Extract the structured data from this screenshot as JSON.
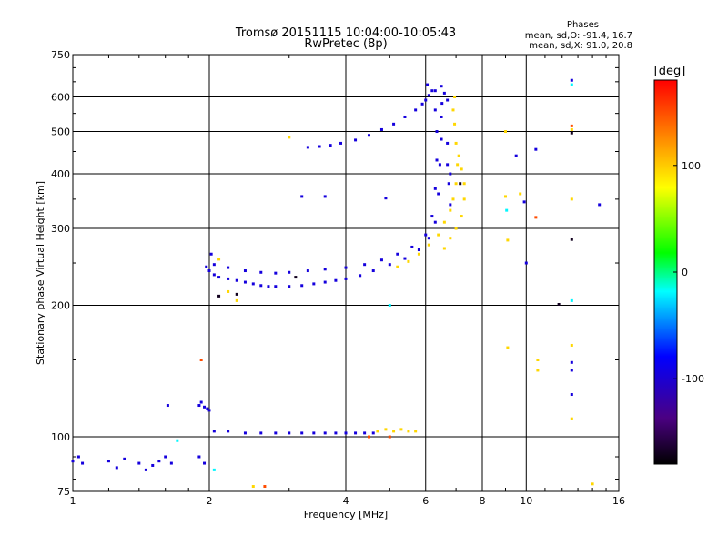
{
  "chart_data": {
    "type": "scatter",
    "title": "Tromsø 20151115 10:04:00-10:05:43",
    "subtitle": "RwPretec (8p)",
    "xlabel": "Frequency [MHz]",
    "ylabel": "Stationary phase Virtual Height [km]",
    "x_scale": "log",
    "y_scale": "log",
    "xlim": [
      1,
      16
    ],
    "ylim": [
      75,
      750
    ],
    "x_ticks": [
      1,
      2,
      4,
      6,
      8,
      10,
      16
    ],
    "y_ticks": [
      75,
      100,
      200,
      300,
      400,
      500,
      600,
      750
    ],
    "grid": true,
    "stats": {
      "header": "Phases",
      "line_o": "mean, sd,O: -91.4, 16.7",
      "line_x": "mean, sd,X:  91.0, 20.8"
    },
    "colorbar": {
      "label": "[deg]",
      "range": [
        -180,
        180
      ],
      "ticks": [
        -100,
        0,
        100
      ],
      "colors": [
        "#000000",
        "#4b0082",
        "#0000ff",
        "#00ffff",
        "#00ff00",
        "#ffff00",
        "#ff8000",
        "#ff0000"
      ]
    },
    "series": [
      {
        "mode": "O",
        "phase": -95,
        "points": [
          [
            1.0,
            88
          ],
          [
            1.03,
            90
          ],
          [
            1.05,
            87
          ],
          [
            1.2,
            88
          ],
          [
            1.25,
            85
          ],
          [
            1.3,
            89
          ],
          [
            1.4,
            87
          ],
          [
            1.45,
            84
          ],
          [
            1.5,
            86
          ],
          [
            1.55,
            88
          ],
          [
            1.6,
            90
          ],
          [
            1.65,
            87
          ],
          [
            1.62,
            118
          ],
          [
            1.9,
            118
          ],
          [
            1.92,
            120
          ],
          [
            1.95,
            117
          ],
          [
            1.98,
            116
          ],
          [
            2.0,
            115
          ],
          [
            1.9,
            90
          ],
          [
            1.95,
            87
          ],
          [
            2.05,
            103
          ],
          [
            2.2,
            103
          ],
          [
            2.4,
            102
          ],
          [
            2.6,
            102
          ],
          [
            2.8,
            102
          ],
          [
            3.0,
            102
          ],
          [
            3.2,
            102
          ],
          [
            3.4,
            102
          ],
          [
            3.6,
            102
          ],
          [
            3.8,
            102
          ],
          [
            4.0,
            102
          ],
          [
            4.2,
            102
          ],
          [
            4.4,
            102
          ],
          [
            4.6,
            102
          ],
          [
            1.97,
            245
          ],
          [
            2.0,
            240
          ],
          [
            2.02,
            262
          ],
          [
            2.05,
            235
          ],
          [
            2.1,
            232
          ],
          [
            2.2,
            230
          ],
          [
            2.3,
            228
          ],
          [
            2.4,
            226
          ],
          [
            2.5,
            224
          ],
          [
            2.6,
            222
          ],
          [
            2.7,
            221
          ],
          [
            2.8,
            221
          ],
          [
            3.0,
            221
          ],
          [
            3.2,
            222
          ],
          [
            3.4,
            224
          ],
          [
            3.6,
            226
          ],
          [
            3.8,
            228
          ],
          [
            4.0,
            230
          ],
          [
            4.3,
            234
          ],
          [
            4.6,
            240
          ],
          [
            5.0,
            248
          ],
          [
            5.4,
            256
          ],
          [
            5.8,
            268
          ],
          [
            6.1,
            285
          ],
          [
            6.3,
            310
          ],
          [
            6.4,
            360
          ],
          [
            6.45,
            420
          ],
          [
            6.5,
            480
          ],
          [
            6.5,
            540
          ],
          [
            6.52,
            580
          ],
          [
            2.05,
            248
          ],
          [
            2.2,
            244
          ],
          [
            2.4,
            240
          ],
          [
            2.6,
            238
          ],
          [
            2.8,
            237
          ],
          [
            3.0,
            238
          ],
          [
            3.3,
            240
          ],
          [
            3.6,
            242
          ],
          [
            4.0,
            244
          ],
          [
            4.4,
            248
          ],
          [
            4.8,
            254
          ],
          [
            5.2,
            262
          ],
          [
            5.6,
            272
          ],
          [
            6.0,
            290
          ],
          [
            6.2,
            320
          ],
          [
            6.3,
            370
          ],
          [
            6.35,
            430
          ],
          [
            6.35,
            500
          ],
          [
            6.3,
            560
          ],
          [
            6.2,
            620
          ],
          [
            6.05,
            640
          ],
          [
            3.3,
            460
          ],
          [
            3.5,
            462
          ],
          [
            3.7,
            465
          ],
          [
            3.9,
            470
          ],
          [
            4.2,
            478
          ],
          [
            4.5,
            490
          ],
          [
            4.8,
            505
          ],
          [
            5.1,
            520
          ],
          [
            5.4,
            540
          ],
          [
            5.7,
            560
          ],
          [
            5.9,
            578
          ],
          [
            6.0,
            590
          ],
          [
            6.1,
            605
          ],
          [
            6.3,
            620
          ],
          [
            6.5,
            635
          ],
          [
            6.6,
            612
          ],
          [
            6.7,
            590
          ],
          [
            6.7,
            420
          ],
          [
            6.75,
            380
          ],
          [
            6.8,
            340
          ],
          [
            6.7,
            470
          ],
          [
            6.8,
            400
          ],
          [
            4.9,
            352
          ],
          [
            3.6,
            355
          ],
          [
            3.2,
            355
          ],
          [
            9.5,
            440
          ],
          [
            9.9,
            345
          ],
          [
            10.5,
            455
          ],
          [
            10.0,
            250
          ],
          [
            12.6,
            655
          ],
          [
            12.6,
            148
          ],
          [
            12.6,
            125
          ],
          [
            12.6,
            142
          ],
          [
            14.5,
            340
          ]
        ]
      },
      {
        "mode": "X",
        "phase": 95,
        "points": [
          [
            4.7,
            103
          ],
          [
            4.9,
            104
          ],
          [
            5.1,
            103
          ],
          [
            5.3,
            104
          ],
          [
            5.5,
            103
          ],
          [
            5.7,
            103
          ],
          [
            5.2,
            245
          ],
          [
            5.5,
            252
          ],
          [
            5.8,
            262
          ],
          [
            6.1,
            275
          ],
          [
            6.4,
            290
          ],
          [
            6.6,
            310
          ],
          [
            6.8,
            330
          ],
          [
            6.9,
            350
          ],
          [
            7.0,
            380
          ],
          [
            7.05,
            420
          ],
          [
            7.0,
            470
          ],
          [
            6.95,
            520
          ],
          [
            6.9,
            560
          ],
          [
            6.95,
            600
          ],
          [
            6.6,
            270
          ],
          [
            6.8,
            285
          ],
          [
            7.0,
            300
          ],
          [
            7.2,
            320
          ],
          [
            7.3,
            350
          ],
          [
            7.3,
            380
          ],
          [
            7.2,
            410
          ],
          [
            7.1,
            440
          ],
          [
            2.1,
            255
          ],
          [
            2.2,
            215
          ],
          [
            2.3,
            205
          ],
          [
            3.0,
            485
          ],
          [
            9.0,
            500
          ],
          [
            9.1,
            282
          ],
          [
            9.1,
            160
          ],
          [
            9.0,
            355
          ],
          [
            9.7,
            360
          ],
          [
            10.6,
            150
          ],
          [
            10.6,
            142
          ],
          [
            12.6,
            505
          ],
          [
            12.6,
            350
          ],
          [
            12.6,
            162
          ],
          [
            12.6,
            110
          ],
          [
            14.0,
            78
          ],
          [
            2.5,
            77
          ]
        ]
      },
      {
        "mode": "other",
        "phase": -170,
        "points": [
          [
            2.1,
            210
          ],
          [
            2.3,
            212
          ],
          [
            3.1,
            232
          ],
          [
            11.8,
            201
          ],
          [
            12.6,
            496
          ],
          [
            12.6,
            283
          ],
          [
            7.15,
            380
          ]
        ]
      },
      {
        "mode": "other",
        "phase": 150,
        "points": [
          [
            1.92,
            150
          ],
          [
            2.65,
            77
          ],
          [
            4.5,
            100
          ],
          [
            5.0,
            100
          ],
          [
            12.6,
            515
          ],
          [
            10.5,
            318
          ]
        ]
      },
      {
        "mode": "other",
        "phase": -20,
        "points": [
          [
            1.7,
            98
          ],
          [
            2.05,
            84
          ],
          [
            5.0,
            200
          ],
          [
            9.05,
            330
          ],
          [
            12.6,
            205
          ],
          [
            12.6,
            640
          ]
        ]
      }
    ]
  }
}
